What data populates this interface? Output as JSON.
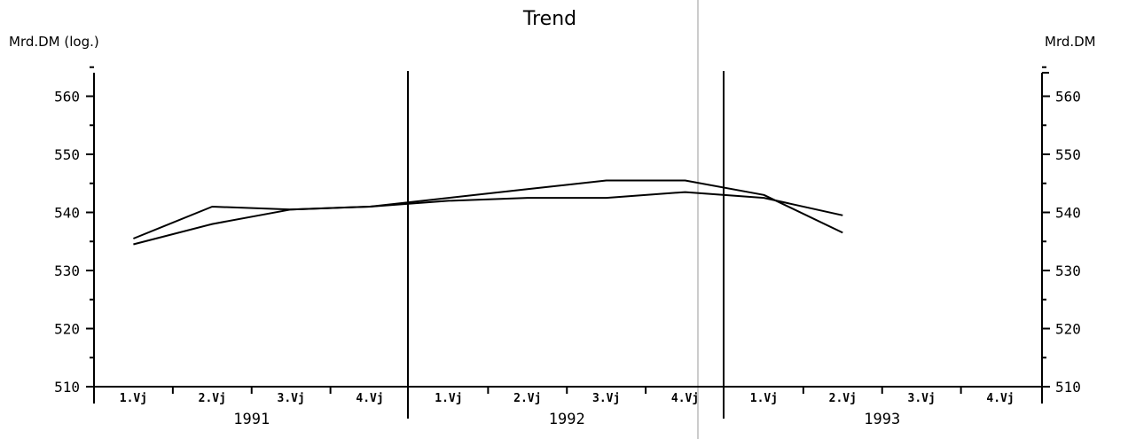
{
  "chart_data": {
    "type": "line",
    "title": "Trend",
    "ylabel_left": "Mrd.DM (log.)",
    "ylabel_right": "Mrd.DM",
    "ylim": [
      510,
      565
    ],
    "yticks": [
      510,
      520,
      530,
      540,
      550,
      560
    ],
    "ytick_labels": [
      "510",
      "520",
      "530",
      "540",
      "550",
      "560"
    ],
    "quarter_labels": [
      "1.Vj",
      "2.Vj",
      "3.Vj",
      "4.Vj"
    ],
    "years": [
      "1991",
      "1992",
      "1993"
    ],
    "grid": false,
    "legend": "none",
    "series": [
      {
        "values": [
          535.5,
          541,
          540.5,
          541,
          542.5,
          544,
          545.5,
          545.5,
          543,
          536.5
        ]
      },
      {
        "values": [
          534.5,
          538,
          540.5,
          541,
          542,
          542.5,
          542.5,
          543.5,
          542.5,
          539.5
        ]
      }
    ]
  }
}
